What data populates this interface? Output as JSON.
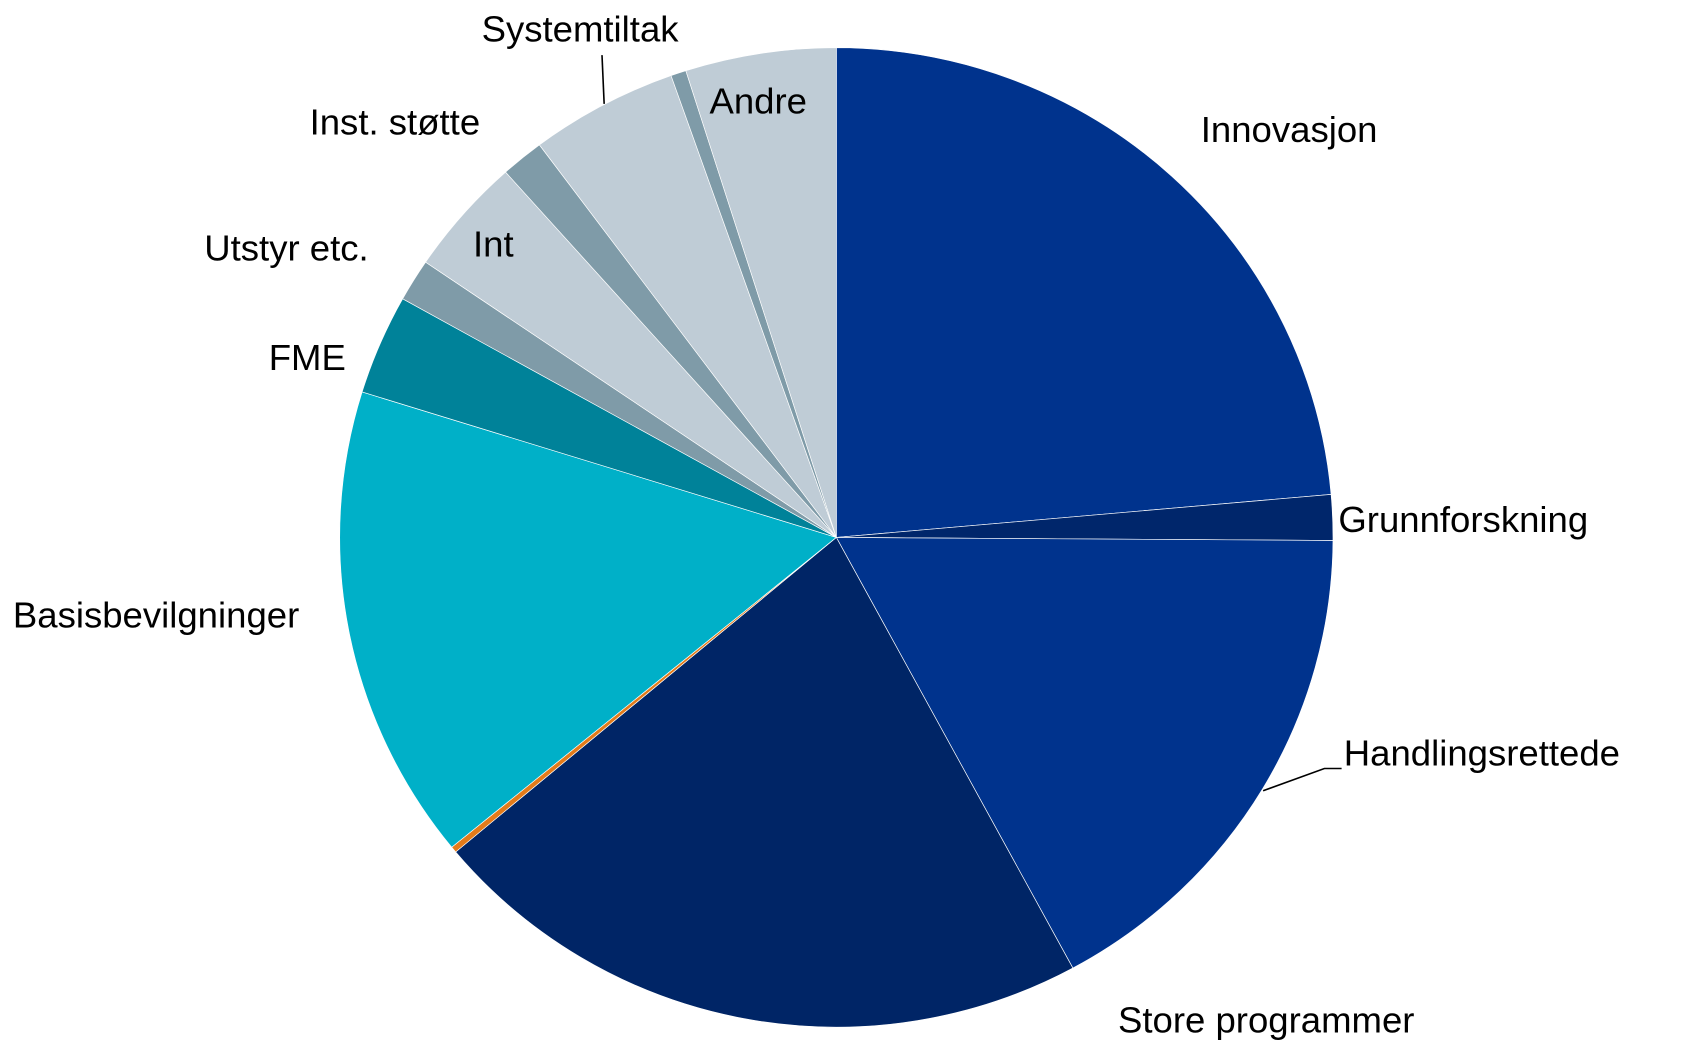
{
  "chart_data": {
    "type": "pie",
    "categories": [
      "Innovasjon",
      "Grunnforskning",
      "Handlingsrettede",
      "Store programmer",
      null,
      "Basisbevilgninger",
      "FME",
      "Utstyr etc.",
      "Int",
      "Inst. støtte",
      "Systemtiltak",
      null,
      "Andre"
    ],
    "values": [
      23.6,
      1.5,
      17,
      21.8,
      0.2,
      15.7,
      3.3,
      1.4,
      3.9,
      1.4,
      4.8,
      0.5,
      4.9
    ],
    "colors": [
      "#00338d",
      "#00266b",
      "#00338d",
      "#002566",
      "#e37b1a",
      "#00b0c8",
      "#008299",
      "#7f9ba8",
      "#bfccd6",
      "#7f9ba8",
      "#bfccd6",
      "#7f9ba8",
      "#bfccd6"
    ]
  }
}
